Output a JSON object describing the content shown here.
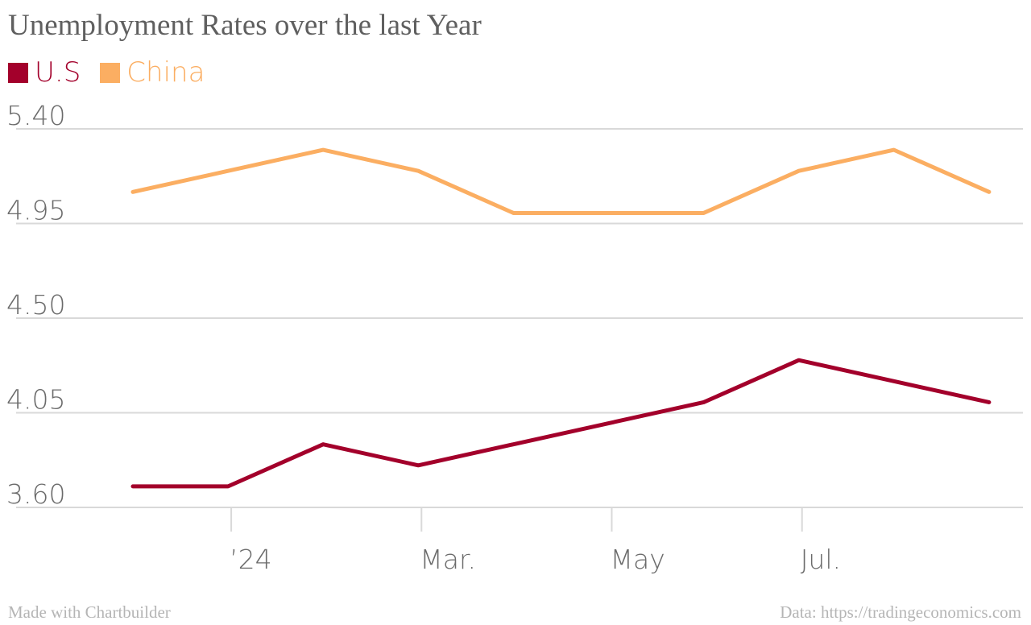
{
  "chart_data": {
    "type": "line",
    "title": "Unemployment Rates over the last Year",
    "x": [
      "2023-11",
      "2023-12",
      "2024-01",
      "2024-02",
      "2024-03",
      "2024-04",
      "2024-05",
      "2024-06",
      "2024-07",
      "2024-08"
    ],
    "x_ticks": [
      {
        "at": "2023-12",
        "label": "’24"
      },
      {
        "at": "2024-02",
        "label": "Mar."
      },
      {
        "at": "2024-04",
        "label": "May"
      },
      {
        "at": "2024-06",
        "label": "Jul."
      }
    ],
    "series": [
      {
        "name": "U.S",
        "color": "#a3002b",
        "values": [
          3.7,
          3.7,
          3.9,
          3.8,
          3.9,
          4.0,
          4.1,
          4.3,
          4.2,
          4.1
        ]
      },
      {
        "name": "China",
        "color": "#fbae62",
        "values": [
          5.1,
          5.2,
          5.3,
          5.2,
          5.0,
          5.0,
          5.0,
          5.2,
          5.3,
          5.1
        ]
      }
    ],
    "y_ticks": [
      "5.40",
      "4.95",
      "4.50",
      "4.05",
      "3.60"
    ],
    "ylim": [
      3.6,
      5.4
    ],
    "grid": true,
    "legend": "top-left"
  },
  "footer": {
    "credit": "Made with Chartbuilder",
    "source": "Data: https://tradingeconomics.com"
  }
}
